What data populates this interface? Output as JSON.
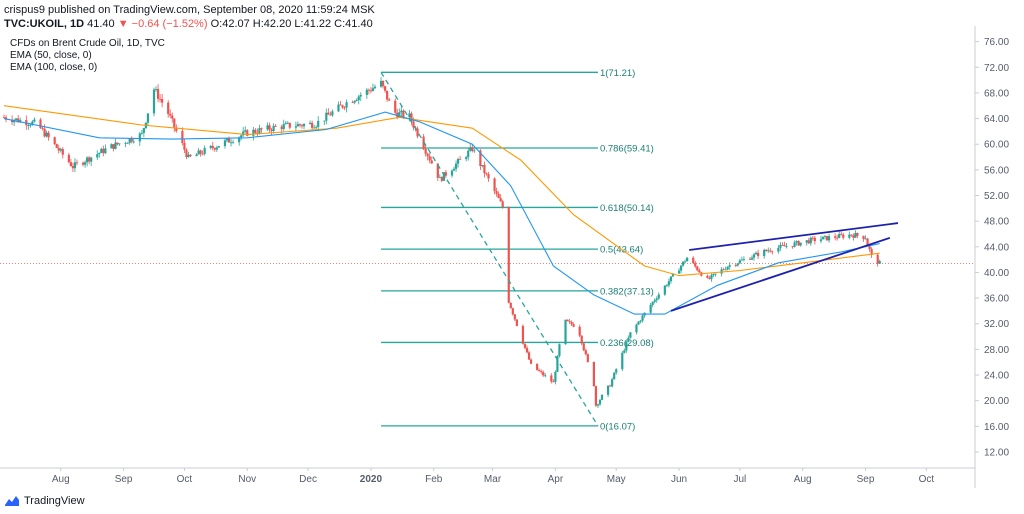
{
  "header": {
    "line1": "crispus9 published on TradingView.com, September 08, 2020 11:59:24 MSK",
    "symbol": "TVC:UKOIL, 1D",
    "last": "41.40",
    "change": "−0.64 (−1.52%)",
    "o_label": "O:",
    "o": "42.07",
    "h_label": "H:",
    "h": "42.20",
    "l_label": "L:",
    "l": "41.22",
    "c_label": "C:",
    "c": "41.40"
  },
  "legend": {
    "title": "CFDs on Brent Crude Oil, 1D, TVC",
    "ema50": "EMA (50, close, 0)",
    "ema100": "EMA (100, close, 0)"
  },
  "footer": {
    "brand": "TradingView",
    "logo_icon": "tradingview-logo-icon"
  },
  "colors": {
    "up": "#26a69a",
    "down": "#ef5350",
    "ema50": "#2196f3",
    "ema100": "#ff9800",
    "fib": "#26a69a",
    "wedge": "#1e22aa",
    "price_line": "#ef5350"
  },
  "chart_data": {
    "type": "candlestick",
    "title": "CFDs on Brent Crude Oil, 1D, TVC",
    "x_labels": [
      "Aug",
      "Sep",
      "Oct",
      "Nov",
      "Dec",
      "2020",
      "Feb",
      "Mar",
      "Apr",
      "May",
      "Jun",
      "Jul",
      "Aug",
      "Sep",
      "Oct"
    ],
    "x_range": [
      "2019-07-04",
      "2020-10-25"
    ],
    "y_ticks": [
      "76.00",
      "72.00",
      "68.00",
      "64.00",
      "60.00",
      "56.00",
      "52.00",
      "48.00",
      "44.00",
      "40.00",
      "36.00",
      "32.00",
      "28.00",
      "24.00",
      "20.00",
      "16.00",
      "12.00"
    ],
    "ylim": [
      9.5,
      77.5
    ],
    "current_price": 41.4,
    "price_path": [
      [
        "2019-07-04",
        64.2
      ],
      [
        "2019-07-20",
        63.2
      ],
      [
        "2019-08-07",
        56.5
      ],
      [
        "2019-08-25",
        59.5
      ],
      [
        "2019-09-10",
        61.5
      ],
      [
        "2019-09-16",
        68.6
      ],
      [
        "2019-09-22",
        65.5
      ],
      [
        "2019-10-03",
        57.8
      ],
      [
        "2019-10-15",
        59.5
      ],
      [
        "2019-11-01",
        61.8
      ],
      [
        "2019-11-18",
        62.8
      ],
      [
        "2019-12-05",
        63.2
      ],
      [
        "2019-12-20",
        66.5
      ],
      [
        "2020-01-06",
        69.5
      ],
      [
        "2020-01-12",
        65.0
      ],
      [
        "2020-01-20",
        64.3
      ],
      [
        "2020-02-04",
        54.5
      ],
      [
        "2020-02-20",
        59.3
      ],
      [
        "2020-03-06",
        50.2
      ],
      [
        "2020-03-09",
        35.5
      ],
      [
        "2020-03-20",
        25.5
      ],
      [
        "2020-03-31",
        22.8
      ],
      [
        "2020-04-05",
        32.5
      ],
      [
        "2020-04-12",
        31.5
      ],
      [
        "2020-04-20",
        22.5
      ],
      [
        "2020-04-21",
        19.3
      ],
      [
        "2020-04-28",
        22.5
      ],
      [
        "2020-05-08",
        30.5
      ],
      [
        "2020-05-20",
        35.8
      ],
      [
        "2020-06-05",
        42.3
      ],
      [
        "2020-06-15",
        38.8
      ],
      [
        "2020-06-25",
        41.0
      ],
      [
        "2020-07-15",
        43.5
      ],
      [
        "2020-08-05",
        45.0
      ],
      [
        "2020-08-25",
        45.9
      ],
      [
        "2020-09-01",
        45.5
      ],
      [
        "2020-09-04",
        42.5
      ],
      [
        "2020-09-08",
        41.4
      ]
    ],
    "ema50": [
      [
        "2019-07-04",
        64.0
      ],
      [
        "2019-08-20",
        61.0
      ],
      [
        "2019-09-25",
        60.8
      ],
      [
        "2019-11-01",
        61.0
      ],
      [
        "2019-12-10",
        62.3
      ],
      [
        "2020-01-08",
        65.0
      ],
      [
        "2020-01-25",
        63.5
      ],
      [
        "2020-02-20",
        60.0
      ],
      [
        "2020-03-10",
        53.5
      ],
      [
        "2020-03-31",
        41.0
      ],
      [
        "2020-04-20",
        36.5
      ],
      [
        "2020-05-10",
        33.5
      ],
      [
        "2020-05-25",
        33.5
      ],
      [
        "2020-06-20",
        38.0
      ],
      [
        "2020-07-20",
        41.5
      ],
      [
        "2020-08-20",
        43.2
      ],
      [
        "2020-09-08",
        44.5
      ]
    ],
    "ema100": [
      [
        "2019-07-04",
        66.0
      ],
      [
        "2019-09-10",
        63.0
      ],
      [
        "2019-11-01",
        61.5
      ],
      [
        "2019-12-15",
        62.5
      ],
      [
        "2020-01-15",
        64.2
      ],
      [
        "2020-02-20",
        62.5
      ],
      [
        "2020-03-15",
        57.5
      ],
      [
        "2020-04-10",
        49.0
      ],
      [
        "2020-05-15",
        41.0
      ],
      [
        "2020-06-01",
        39.5
      ],
      [
        "2020-07-01",
        40.3
      ],
      [
        "2020-08-01",
        41.5
      ],
      [
        "2020-09-08",
        43.0
      ]
    ],
    "fibonacci": {
      "start_date": "2020-01-06",
      "end_date": "2020-04-22",
      "levels": [
        {
          "label": "1(71.21)",
          "value": 71.21
        },
        {
          "label": "0.786(59.41)",
          "value": 59.41
        },
        {
          "label": "0.618(50.14)",
          "value": 50.14
        },
        {
          "label": "0.5(43.64)",
          "value": 43.64
        },
        {
          "label": "0.382(37.13)",
          "value": 37.13
        },
        {
          "label": "0.236(29.08)",
          "value": 29.08
        },
        {
          "label": "0(16.07)",
          "value": 16.07
        }
      ]
    },
    "trendlines": [
      {
        "name": "fib-diagonal",
        "style": "dashed",
        "from": [
          "2020-01-06",
          71.21
        ],
        "to": [
          "2020-04-22",
          16.07
        ]
      },
      {
        "name": "wedge-upper",
        "style": "solid",
        "from": [
          "2020-06-06",
          43.5
        ],
        "to": [
          "2020-09-17",
          47.7
        ]
      },
      {
        "name": "wedge-lower",
        "style": "solid",
        "from": [
          "2020-05-28",
          34.0
        ],
        "to": [
          "2020-09-13",
          45.4
        ]
      }
    ]
  }
}
